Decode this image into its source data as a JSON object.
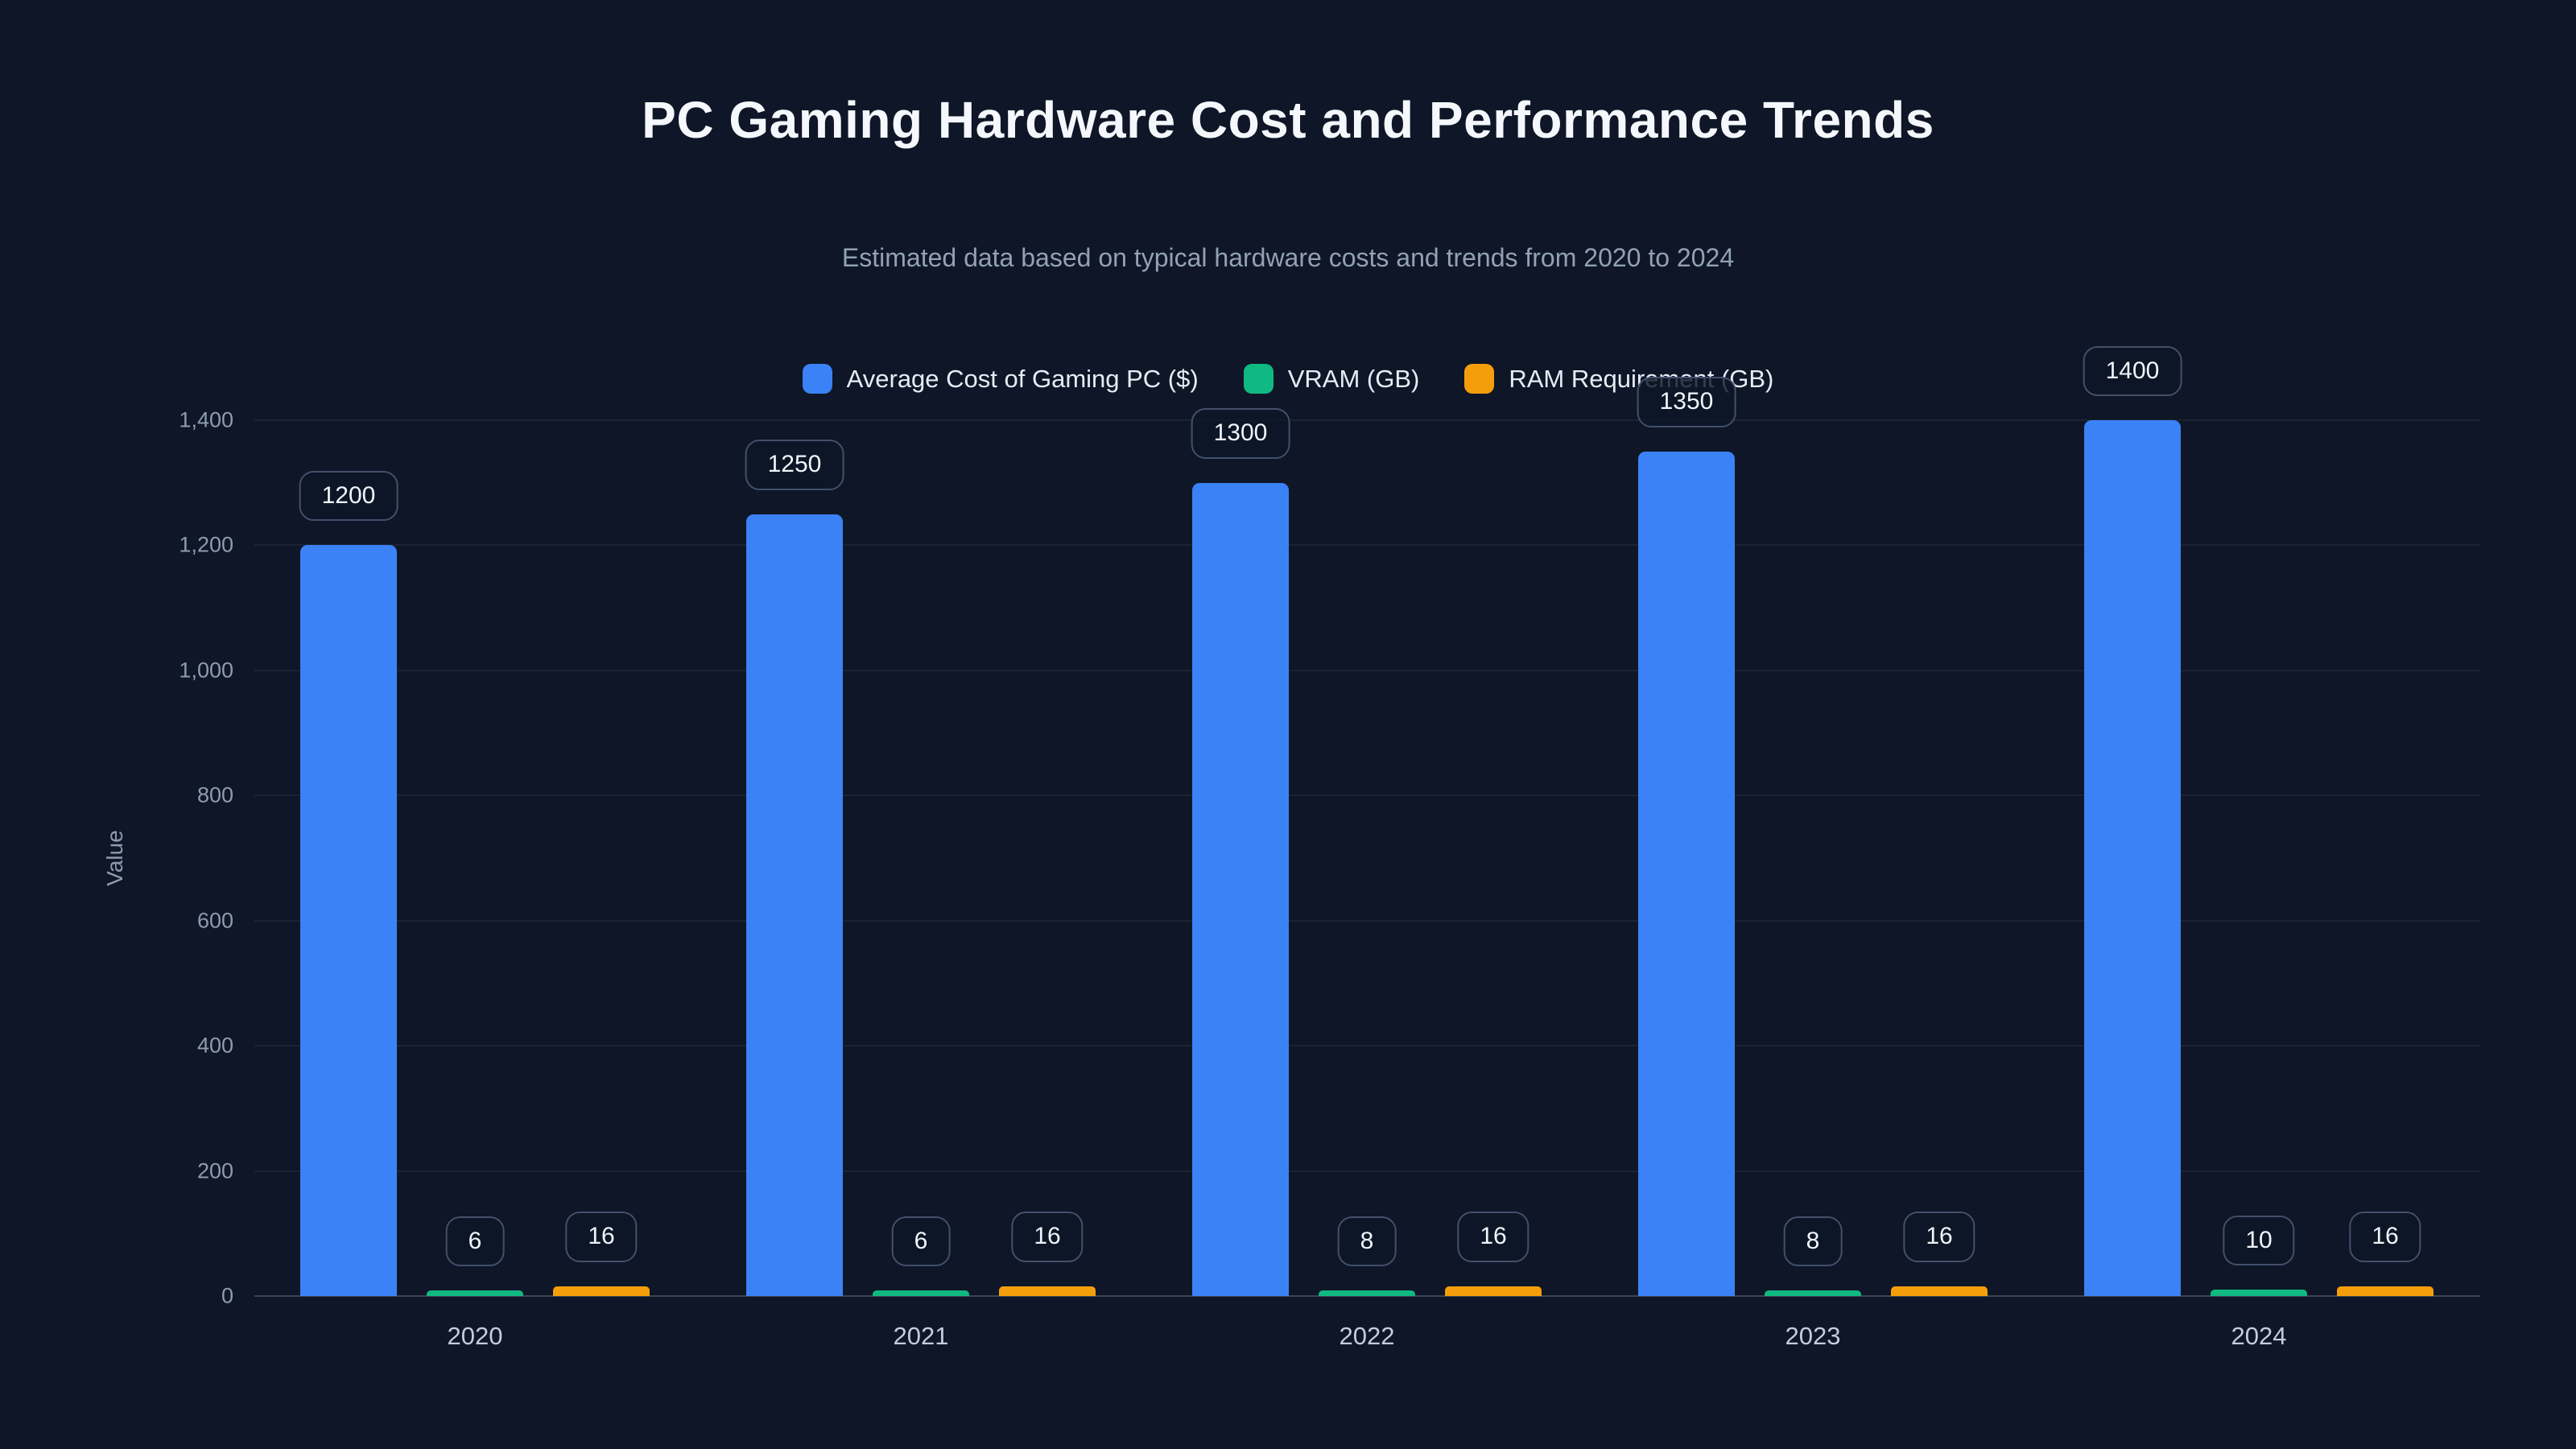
{
  "page": {
    "background": "#0e1627"
  },
  "header": {
    "title": "PC Gaming Hardware Cost and Performance Trends",
    "subtitle": "Estimated data based on typical hardware costs and trends from 2020 to 2024"
  },
  "chart_data": {
    "type": "bar",
    "title": "PC Gaming Hardware Cost and Performance Trends",
    "subtitle": "Estimated data based on typical hardware costs and trends from 2020 to 2024",
    "categories": [
      "2020",
      "2021",
      "2022",
      "2023",
      "2024"
    ],
    "series": [
      {
        "name": "Average Cost of Gaming PC ($)",
        "color": "#3b82f6",
        "values": [
          1200,
          1250,
          1300,
          1350,
          1400
        ]
      },
      {
        "name": "VRAM (GB)",
        "color": "#10b981",
        "values": [
          6,
          6,
          8,
          8,
          10
        ]
      },
      {
        "name": "RAM Requirement (GB)",
        "color": "#f59e0b",
        "values": [
          16,
          16,
          16,
          16,
          16
        ]
      }
    ],
    "xlabel": "",
    "ylabel": "Value",
    "ylim": [
      0,
      1400
    ],
    "yticks": [
      0,
      200,
      400,
      600,
      800,
      1000,
      1200,
      1400
    ],
    "ytick_labels": [
      "0",
      "200",
      "400",
      "600",
      "800",
      "1,000",
      "1,200",
      "1,400"
    ],
    "grid": true,
    "legend_position": "top-center",
    "data_labels": true
  }
}
